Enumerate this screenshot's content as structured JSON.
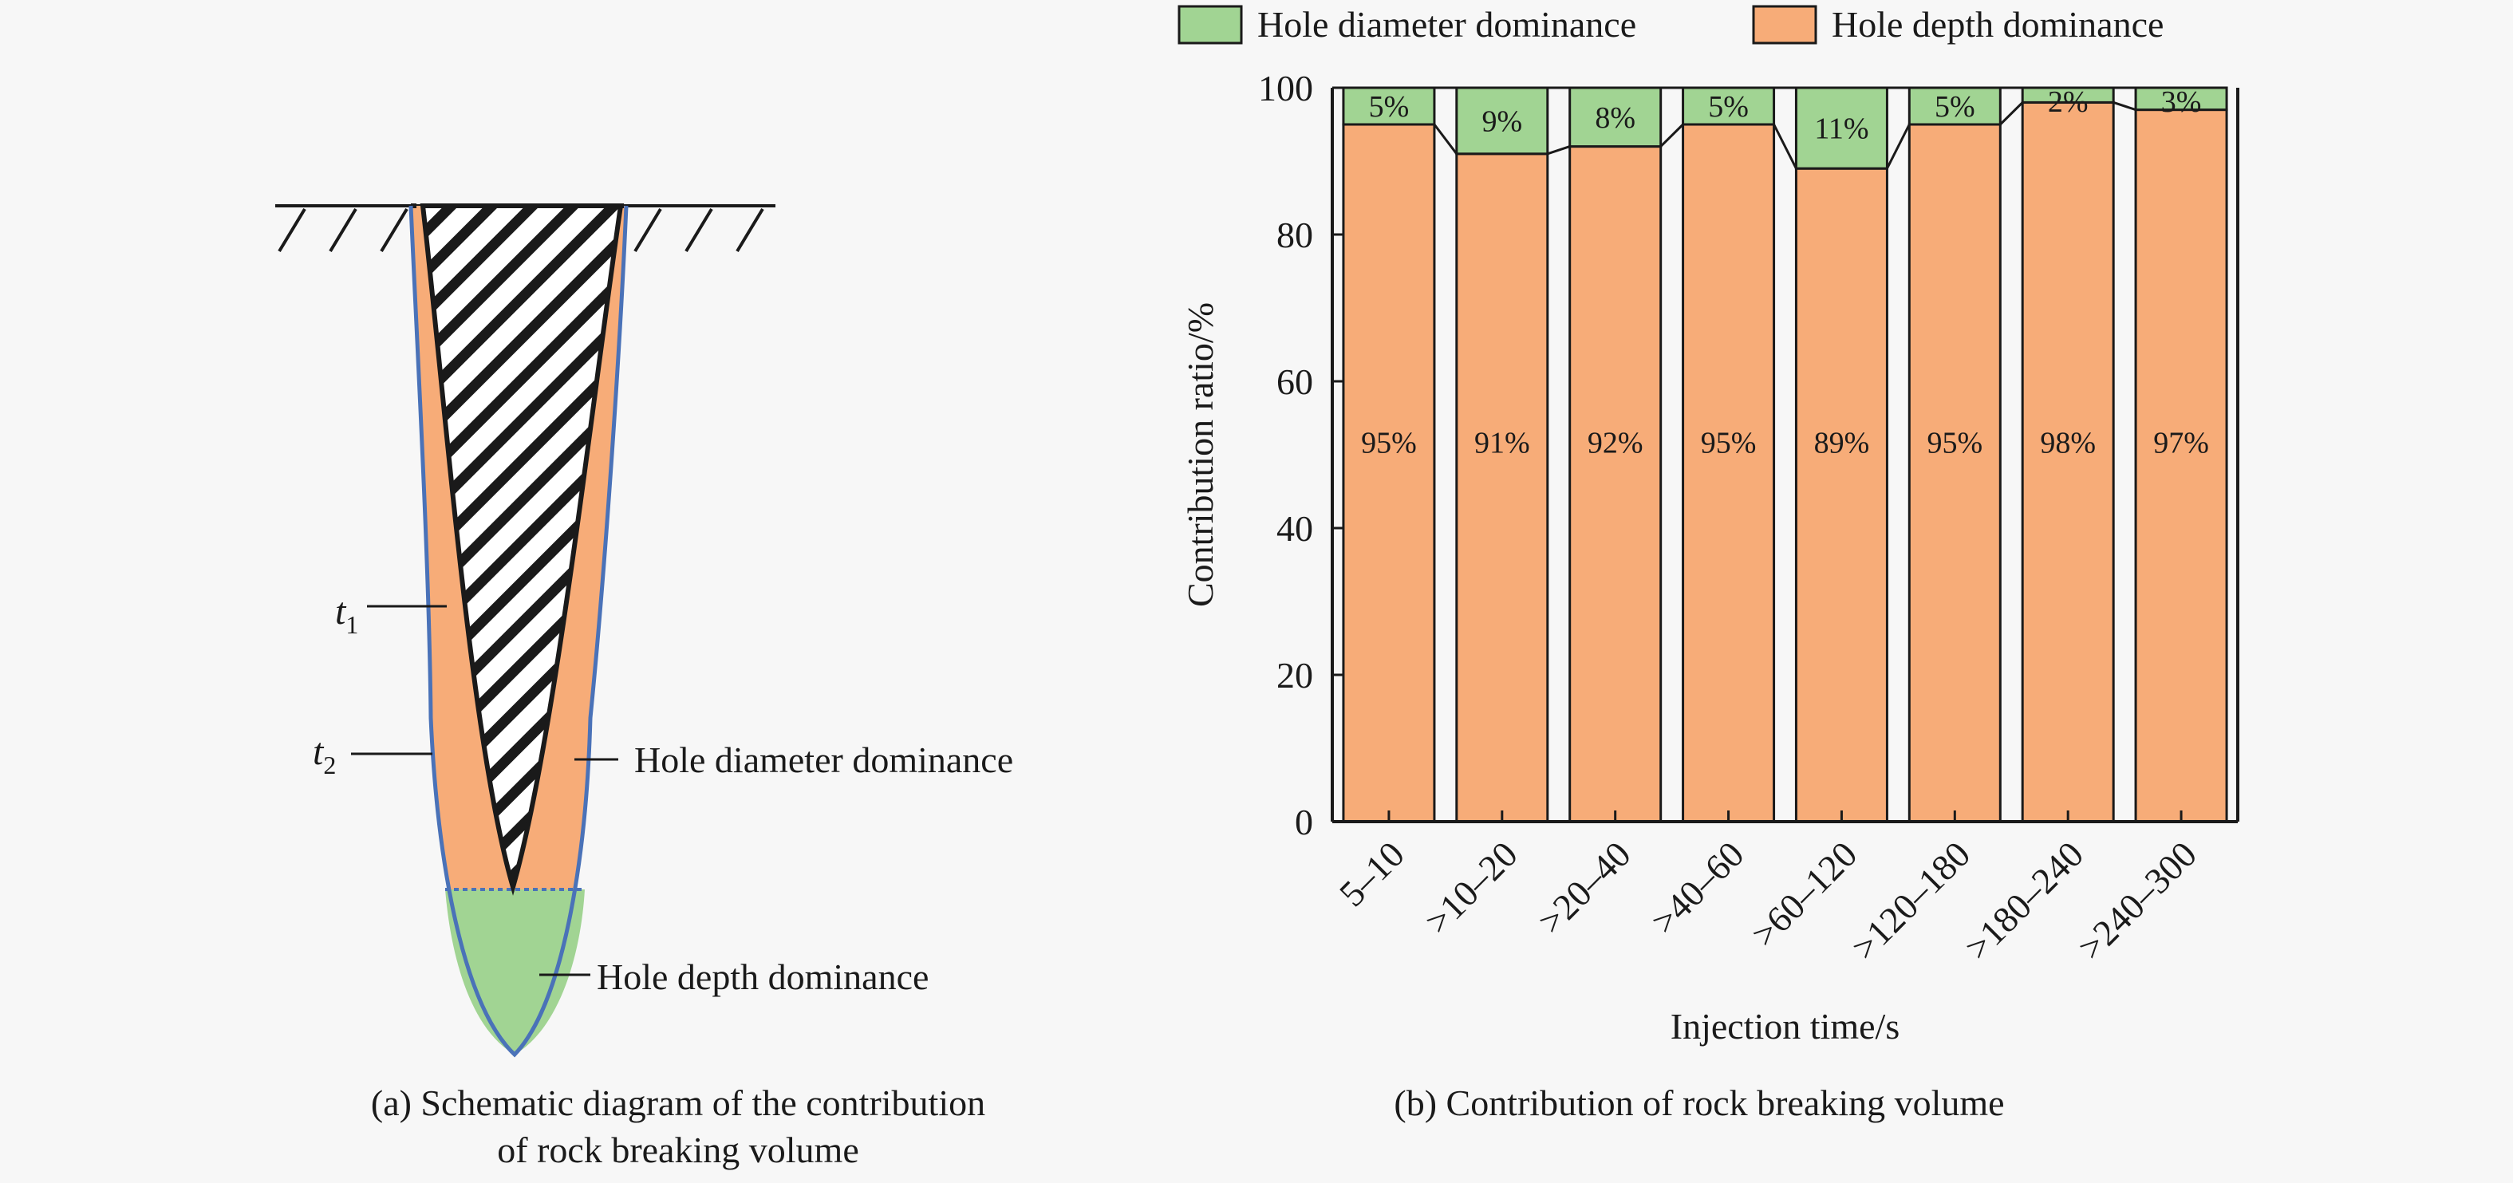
{
  "panel_a": {
    "caption_line1": "(a) Schematic diagram of the contribution",
    "caption_line2": "of rock breaking volume",
    "label_t1": "t",
    "label_t1_sub": "1",
    "label_t2": "t",
    "label_t2_sub": "2",
    "label_diameter": "Hole diameter dominance",
    "label_depth": "Hole depth dominance",
    "colors": {
      "orange": "#f7ac78",
      "green": "#a1d493",
      "outline": "#4a72b8",
      "hatch": "#1a1a1a"
    }
  },
  "panel_b": {
    "caption": "(b) Contribution of rock breaking volume"
  },
  "chart_data": {
    "type": "bar",
    "stacked": true,
    "categories": [
      "5–10",
      ">10–20",
      ">20–40",
      ">40–60",
      ">60–120",
      ">120–180",
      ">180–240",
      ">240–300"
    ],
    "series": [
      {
        "name": "Hole depth dominance",
        "values": [
          95,
          91,
          92,
          95,
          89,
          95,
          98,
          97
        ],
        "labels": [
          "95%",
          "91%",
          "92%",
          "95%",
          "89%",
          "95%",
          "98%",
          "97%"
        ],
        "color": "#f7ac78"
      },
      {
        "name": "Hole diameter dominance",
        "values": [
          5,
          9,
          8,
          5,
          11,
          5,
          2,
          3
        ],
        "labels": [
          "5%",
          "9%",
          "8%",
          "5%",
          "11%",
          "5%",
          "2%",
          "3%"
        ],
        "color": "#a1d493"
      }
    ],
    "xlabel": "Injection time/s",
    "ylabel": "Contribution ratio/%",
    "ylim": [
      0,
      100
    ],
    "yticks": [
      0,
      20,
      40,
      60,
      80,
      100
    ],
    "legend_position": "top",
    "grid": false,
    "connector_lines": true
  }
}
